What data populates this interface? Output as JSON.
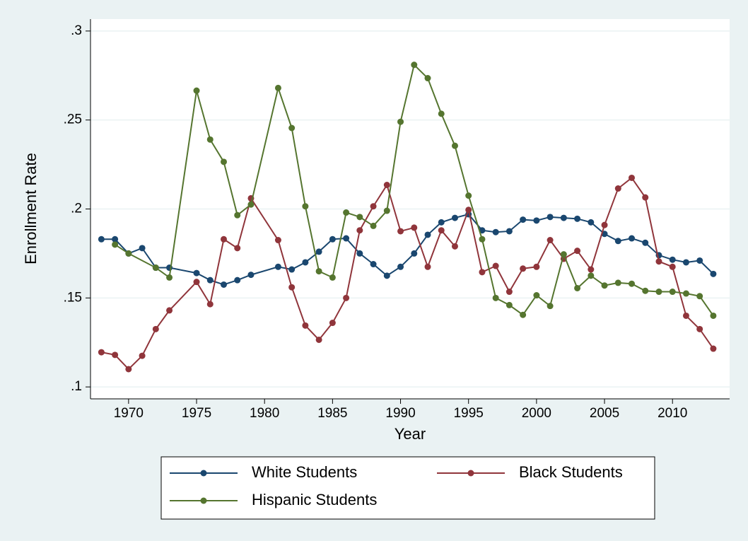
{
  "chart_data": {
    "type": "line",
    "xlabel": "Year",
    "ylabel": "Enrollment Rate",
    "xlim": [
      1967.2,
      2014.2
    ],
    "xticks": [
      1970,
      1975,
      1980,
      1985,
      1990,
      1995,
      2000,
      2005,
      2010
    ],
    "ylim": [
      0.0933,
      0.3067
    ],
    "yticks": [
      {
        "value": 0.1,
        "label": ".1"
      },
      {
        "value": 0.15,
        "label": ".15"
      },
      {
        "value": 0.2,
        "label": ".2"
      },
      {
        "value": 0.25,
        "label": ".25"
      },
      {
        "value": 0.3,
        "label": ".3"
      }
    ],
    "grid": true,
    "legend": "bottom",
    "series": [
      {
        "name": "White Students",
        "color": "#1a476f",
        "x": [
          1968,
          1969,
          1970,
          1971,
          1972,
          1973,
          1975,
          1976,
          1977,
          1978,
          1979,
          1981,
          1982,
          1983,
          1984,
          1985,
          1986,
          1987,
          1988,
          1989,
          1990,
          1991,
          1992,
          1993,
          1994,
          1995,
          1996,
          1997,
          1998,
          1999,
          2000,
          2001,
          2002,
          2003,
          2004,
          2005,
          2006,
          2007,
          2008,
          2009,
          2010,
          2011,
          2012,
          2013
        ],
        "values": [
          0.183,
          0.183,
          0.175,
          0.178,
          0.167,
          0.167,
          0.164,
          0.16,
          0.1575,
          0.16,
          0.163,
          0.1675,
          0.166,
          0.17,
          0.176,
          0.183,
          0.1835,
          0.175,
          0.169,
          0.1625,
          0.1675,
          0.175,
          0.1855,
          0.1925,
          0.195,
          0.197,
          0.188,
          0.187,
          0.1875,
          0.194,
          0.1935,
          0.1955,
          0.195,
          0.1945,
          0.1925,
          0.186,
          0.182,
          0.1835,
          0.181,
          0.174,
          0.1715,
          0.17,
          0.171,
          0.1635
        ]
      },
      {
        "name": "Black Students",
        "color": "#90353b",
        "x": [
          1968,
          1969,
          1970,
          1971,
          1972,
          1973,
          1975,
          1976,
          1977,
          1978,
          1979,
          1981,
          1982,
          1983,
          1984,
          1985,
          1986,
          1987,
          1988,
          1989,
          1990,
          1991,
          1992,
          1993,
          1994,
          1995,
          1996,
          1997,
          1998,
          1999,
          2000,
          2001,
          2002,
          2003,
          2004,
          2005,
          2006,
          2007,
          2008,
          2009,
          2010,
          2011,
          2012,
          2013
        ],
        "values": [
          0.1195,
          0.118,
          0.11,
          0.1175,
          0.1325,
          0.143,
          0.159,
          0.1465,
          0.183,
          0.178,
          0.206,
          0.1825,
          0.156,
          0.1345,
          0.1265,
          0.136,
          0.15,
          0.188,
          0.2015,
          0.2135,
          0.1875,
          0.1895,
          0.1675,
          0.188,
          0.179,
          0.1995,
          0.1645,
          0.168,
          0.1535,
          0.1665,
          0.1675,
          0.1825,
          0.172,
          0.1765,
          0.166,
          0.191,
          0.2115,
          0.2175,
          0.2065,
          0.1705,
          0.1675,
          0.14,
          0.1325,
          0.1215
        ]
      },
      {
        "name": "Hispanic Students",
        "color": "#55752f",
        "x": [
          1969,
          1970,
          1972,
          1973,
          1975,
          1976,
          1977,
          1978,
          1979,
          1981,
          1982,
          1983,
          1984,
          1985,
          1986,
          1987,
          1988,
          1989,
          1990,
          1991,
          1992,
          1993,
          1994,
          1995,
          1996,
          1997,
          1998,
          1999,
          2000,
          2001,
          2002,
          2003,
          2004,
          2005,
          2006,
          2007,
          2008,
          2009,
          2010,
          2011,
          2012,
          2013
        ],
        "values": [
          0.18,
          0.175,
          0.167,
          0.1615,
          0.2665,
          0.239,
          0.2265,
          0.1965,
          0.2025,
          0.268,
          0.2455,
          0.2015,
          0.165,
          0.1615,
          0.198,
          0.1955,
          0.1905,
          0.199,
          0.249,
          0.281,
          0.2735,
          0.2535,
          0.2355,
          0.2075,
          0.183,
          0.15,
          0.146,
          0.1405,
          0.1515,
          0.1455,
          0.1745,
          0.1555,
          0.1625,
          0.157,
          0.1585,
          0.158,
          0.154,
          0.1535,
          0.1535,
          0.1525,
          0.151,
          0.14
        ]
      }
    ]
  }
}
